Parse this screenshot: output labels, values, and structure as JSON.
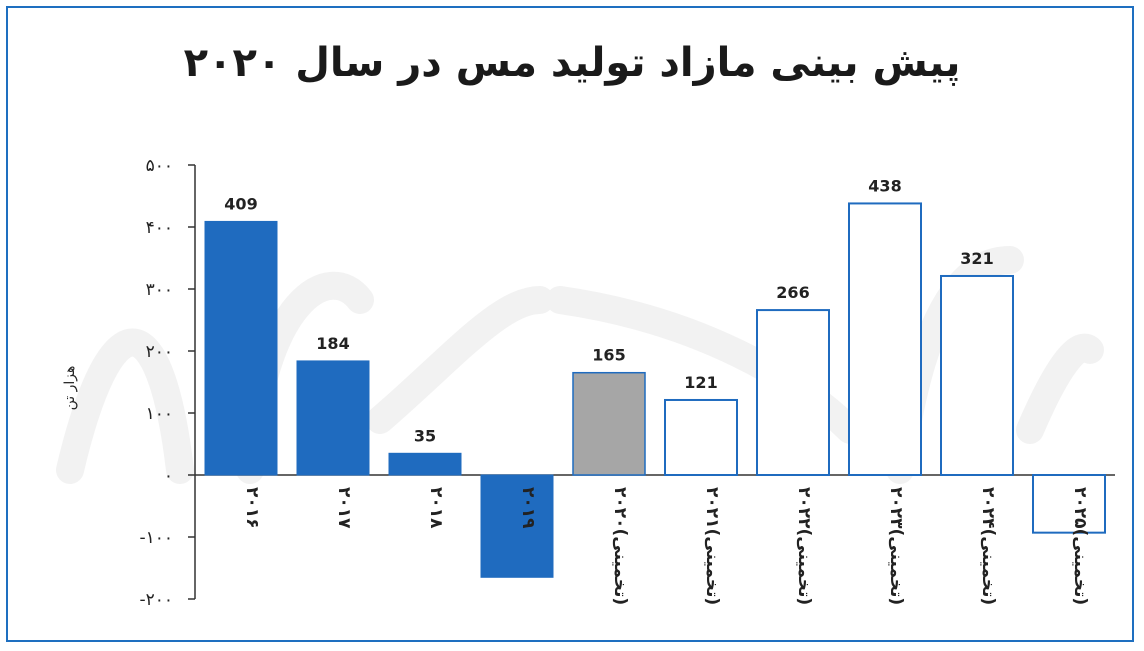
{
  "chart_data": {
    "type": "bar",
    "title": "پیش بینی مازاد تولید مس در سال ۲۰۲۰",
    "ylabel": "هزار تن",
    "xlabel": "",
    "ylim": [
      -200,
      500
    ],
    "yticks": [
      -200,
      -100,
      0,
      100,
      200,
      300,
      400,
      500
    ],
    "ytick_labels": [
      "-۲۰۰",
      "-۱۰۰",
      "۰",
      "۱۰۰",
      "۲۰۰",
      "۳۰۰",
      "۴۰۰",
      "۵۰۰"
    ],
    "categories": [
      "۲۰۱۶",
      "۲۰۱۷",
      "۲۰۱۸",
      "۲۰۱۹",
      "۲۰۲۰(تخمینی)",
      "۲۰۲۱(تخمینی)",
      "۲۰۲۲(تخمینی)",
      "۲۰۲۳(تخمینی)",
      "۲۰۲۴(تخمینی)",
      "۲۰۲۵(تخمینی)"
    ],
    "values": [
      409,
      184,
      35,
      -165,
      165,
      121,
      266,
      438,
      321,
      -93
    ],
    "data_labels": [
      "409",
      "184",
      "35",
      "",
      "165",
      "121",
      "266",
      "438",
      "321",
      ""
    ],
    "bar_styles": [
      "filled",
      "filled",
      "filled",
      "filled",
      "gray",
      "outline",
      "outline",
      "outline",
      "outline",
      "outline"
    ],
    "colors": {
      "primary": "#1f6bbf",
      "estimate_gray": "#a6a6a6",
      "outline": "#1f6bbf",
      "frame": "#1e6fc0"
    },
    "grid": false,
    "legend": "none"
  }
}
